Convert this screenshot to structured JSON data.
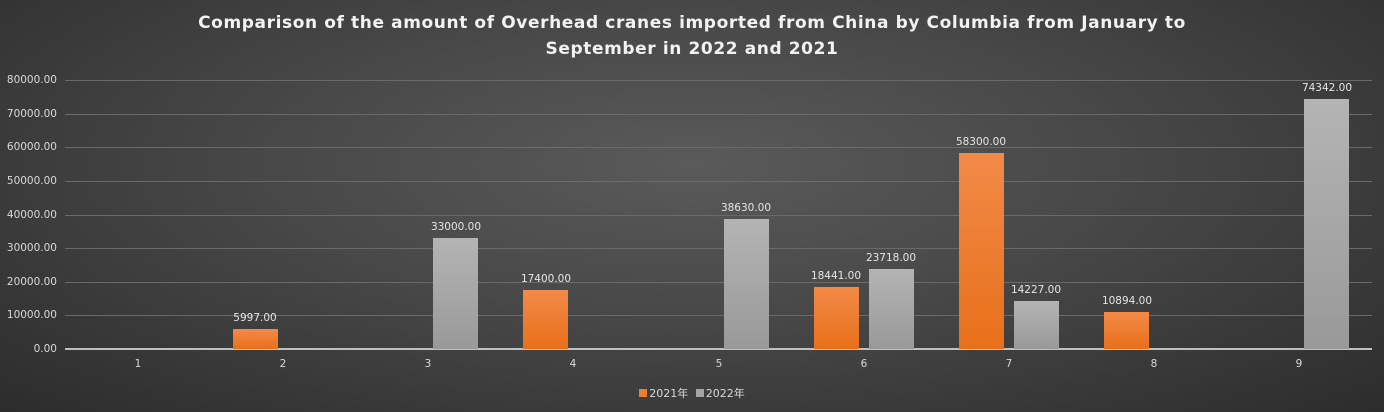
{
  "chart_data": {
    "type": "bar",
    "title": "Comparison of the amount of Overhead cranes imported from China by Columbia from January to September in 2022 and 2021",
    "title_lines": [
      "Comparison of the amount of Overhead cranes imported from China by Columbia from January to",
      "September in 2022 and 2021"
    ],
    "xlabel": "",
    "ylabel": "",
    "ylim": [
      0,
      80000
    ],
    "yticks": [
      "0.00",
      "10000.00",
      "20000.00",
      "30000.00",
      "40000.00",
      "50000.00",
      "60000.00",
      "70000.00",
      "80000.00"
    ],
    "categories": [
      "1",
      "2",
      "3",
      "4",
      "5",
      "6",
      "7",
      "8",
      "9"
    ],
    "series": [
      {
        "name": "2021年",
        "color": "#ED7D31",
        "values": [
          null,
          5997,
          null,
          17400,
          null,
          18441,
          58300,
          10894,
          null
        ],
        "labels": [
          "",
          "5997.00",
          "",
          "17400.00",
          "",
          "18441.00",
          "58300.00",
          "10894.00",
          ""
        ]
      },
      {
        "name": "2022年",
        "color": "#A5A5A5",
        "values": [
          null,
          null,
          33000,
          null,
          38630,
          23718,
          14227,
          null,
          74342
        ],
        "labels": [
          "",
          "",
          "33000.00",
          "",
          "38630.00",
          "23718.00",
          "14227.00",
          "",
          "74342.00"
        ]
      }
    ],
    "grid": true,
    "legend_position": "bottom"
  }
}
